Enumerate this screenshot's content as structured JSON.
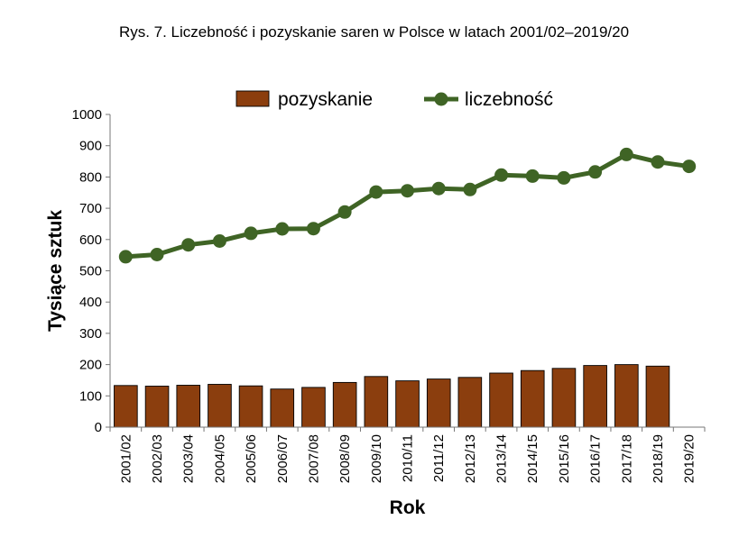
{
  "chart_data": {
    "type": "bar+line",
    "title": "Rys. 7. Liczebność i pozyskanie saren w Polsce w latach 2001/02–2019/20",
    "xlabel": "Rok",
    "ylabel": "Tysiące sztuk",
    "ylim": [
      0,
      1000
    ],
    "yticks": [
      0,
      100,
      200,
      300,
      400,
      500,
      600,
      700,
      800,
      900,
      1000
    ],
    "grid": false,
    "legend_position": "top",
    "categories": [
      "2001/02",
      "2002/03",
      "2003/04",
      "2004/05",
      "2005/06",
      "2006/07",
      "2007/08",
      "2008/09",
      "2009/10",
      "2010/11",
      "2011/12",
      "2012/13",
      "2013/14",
      "2014/15",
      "2015/16",
      "2016/17",
      "2017/18",
      "2018/19",
      "2019/20"
    ],
    "series": [
      {
        "name": "pozyskanie",
        "kind": "bar",
        "color": "#8b3e0e",
        "values": [
          133,
          131,
          134,
          137,
          132,
          122,
          127,
          143,
          162,
          148,
          154,
          159,
          173,
          181,
          188,
          197,
          200,
          195,
          null
        ]
      },
      {
        "name": "liczebność",
        "kind": "line",
        "color": "#3f6425",
        "values": [
          545,
          552,
          583,
          595,
          620,
          634,
          635,
          688,
          752,
          756,
          763,
          760,
          806,
          803,
          797,
          816,
          872,
          848,
          834
        ]
      }
    ]
  }
}
